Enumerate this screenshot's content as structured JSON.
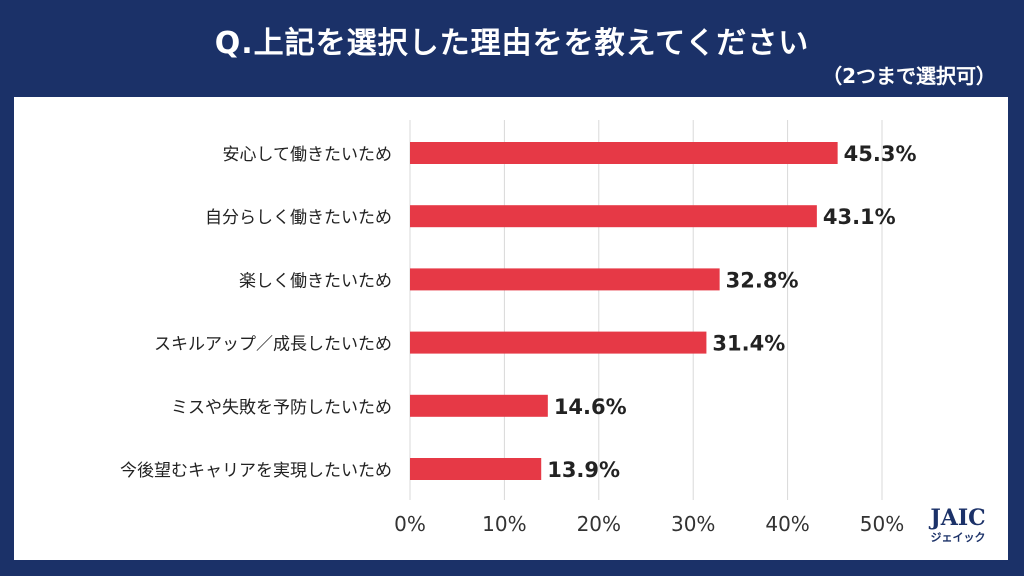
{
  "title": "Q.上記を選択した理由をを教えてください",
  "subtitle": "（2つまで選択可）",
  "logo": {
    "text": "JAIC",
    "sub": "ジェイック"
  },
  "chart_data": {
    "type": "bar",
    "orientation": "horizontal",
    "categories": [
      "安心して働きたいため",
      "自分らしく働きたいため",
      "楽しく働きたいため",
      "スキルアップ／成長したいため",
      "ミスや失敗を予防したいため",
      "今後望むキャリアを実現したいため"
    ],
    "values": [
      45.3,
      43.1,
      32.8,
      31.4,
      14.6,
      13.9
    ],
    "data_labels": [
      "45.3%",
      "43.1%",
      "32.8%",
      "31.4%",
      "14.6%",
      "13.9%"
    ],
    "xlim": [
      0,
      50
    ],
    "xticks": [
      0,
      10,
      20,
      30,
      40,
      50
    ],
    "xtick_labels": [
      "0%",
      "10%",
      "20%",
      "30%",
      "40%",
      "50%"
    ],
    "grid": true,
    "bar_color": "#e63946"
  }
}
